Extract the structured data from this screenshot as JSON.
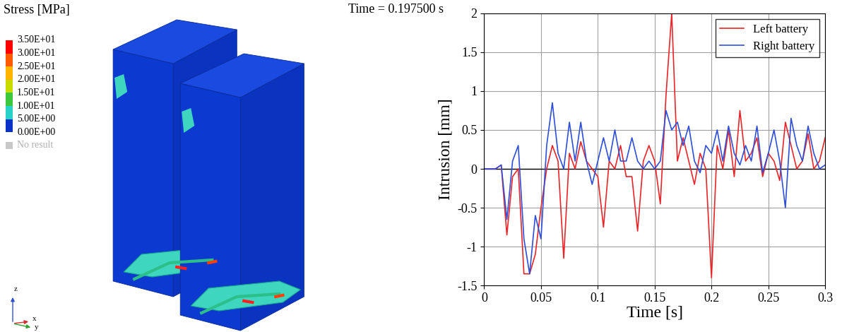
{
  "contour_plot": {
    "title": "Stress [MPa]",
    "time_label": "Time = 0.197500 s",
    "scale_labels": [
      "3.50E+01",
      "3.00E+01",
      "2.50E+01",
      "2.00E+01",
      "1.50E+01",
      "1.00E+01",
      "5.00E+00",
      "0.00E+00"
    ],
    "band_colors": [
      "#ff0000",
      "#ff5a00",
      "#ffb400",
      "#c8dc00",
      "#3cc83c",
      "#28d2c8",
      "#0a32c8"
    ],
    "no_result": {
      "label": "No result",
      "color": "#c8c8c8"
    },
    "triad": [
      "z",
      "x",
      "y"
    ]
  },
  "chart_data": {
    "type": "line",
    "xlabel": "Time [s]",
    "ylabel": "Intrusion [mm]",
    "x": [
      0,
      0.005,
      0.01,
      0.015,
      0.02,
      0.025,
      0.03,
      0.035,
      0.04,
      0.045,
      0.05,
      0.055,
      0.06,
      0.065,
      0.07,
      0.075,
      0.08,
      0.085,
      0.09,
      0.095,
      0.1,
      0.105,
      0.11,
      0.115,
      0.12,
      0.125,
      0.13,
      0.135,
      0.14,
      0.145,
      0.15,
      0.155,
      0.16,
      0.165,
      0.17,
      0.175,
      0.18,
      0.185,
      0.19,
      0.195,
      0.2,
      0.205,
      0.21,
      0.215,
      0.22,
      0.225,
      0.23,
      0.235,
      0.24,
      0.245,
      0.25,
      0.255,
      0.26,
      0.265,
      0.27,
      0.275,
      0.28,
      0.285,
      0.29,
      0.295,
      0.3
    ],
    "series": [
      {
        "name": "Left battery",
        "color": "#e8262a",
        "values": [
          0,
          0,
          0,
          0.05,
          -0.85,
          -0.1,
          0,
          -1.35,
          -1.35,
          -1.1,
          -0.5,
          0,
          0.3,
          0.1,
          -1.15,
          0.2,
          0,
          0.35,
          0.1,
          0,
          -0.1,
          -0.75,
          0.1,
          0,
          0.3,
          -0.1,
          -0.1,
          -0.8,
          0.1,
          0.3,
          0.1,
          -0.45,
          0.95,
          2.0,
          0.1,
          0.4,
          0.1,
          -0.2,
          0.2,
          0,
          -1.4,
          0.3,
          0,
          0.5,
          -0.1,
          0.75,
          0.1,
          0.2,
          0.4,
          -0.1,
          0.2,
          0.1,
          -0.15,
          0.6,
          0.3,
          0,
          0.1,
          0.45,
          0,
          0.1,
          0.4
        ]
      },
      {
        "name": "Right battery",
        "color": "#2f4fd8",
        "values": [
          0,
          0,
          0,
          0.05,
          -0.65,
          0.1,
          0.3,
          -0.9,
          -1.35,
          -0.6,
          -0.9,
          0.3,
          0.85,
          0.2,
          0,
          0.6,
          0.1,
          0.6,
          0.1,
          -0.2,
          0.1,
          0.4,
          0.1,
          0.5,
          0.1,
          0.1,
          0.4,
          0.1,
          0,
          0.1,
          0,
          0.1,
          0.75,
          0.5,
          0.6,
          0.3,
          0.55,
          0.1,
          -0.05,
          0.3,
          0.2,
          0.5,
          0.1,
          0.55,
          0.2,
          0.05,
          0.3,
          0.1,
          0.55,
          -0.05,
          0.2,
          0.5,
          0.1,
          -0.5,
          0.65,
          0.3,
          0.1,
          0.55,
          0.2,
          0,
          0.05
        ]
      }
    ],
    "xlim": [
      0,
      0.3
    ],
    "ylim": [
      -1.5,
      2
    ],
    "xticks": [
      0,
      0.05,
      0.1,
      0.15,
      0.2,
      0.25,
      0.3
    ],
    "yticks": [
      -1.5,
      -1,
      -0.5,
      0,
      0.5,
      1,
      1.5,
      2
    ],
    "grid": true,
    "legend": "upper right"
  }
}
